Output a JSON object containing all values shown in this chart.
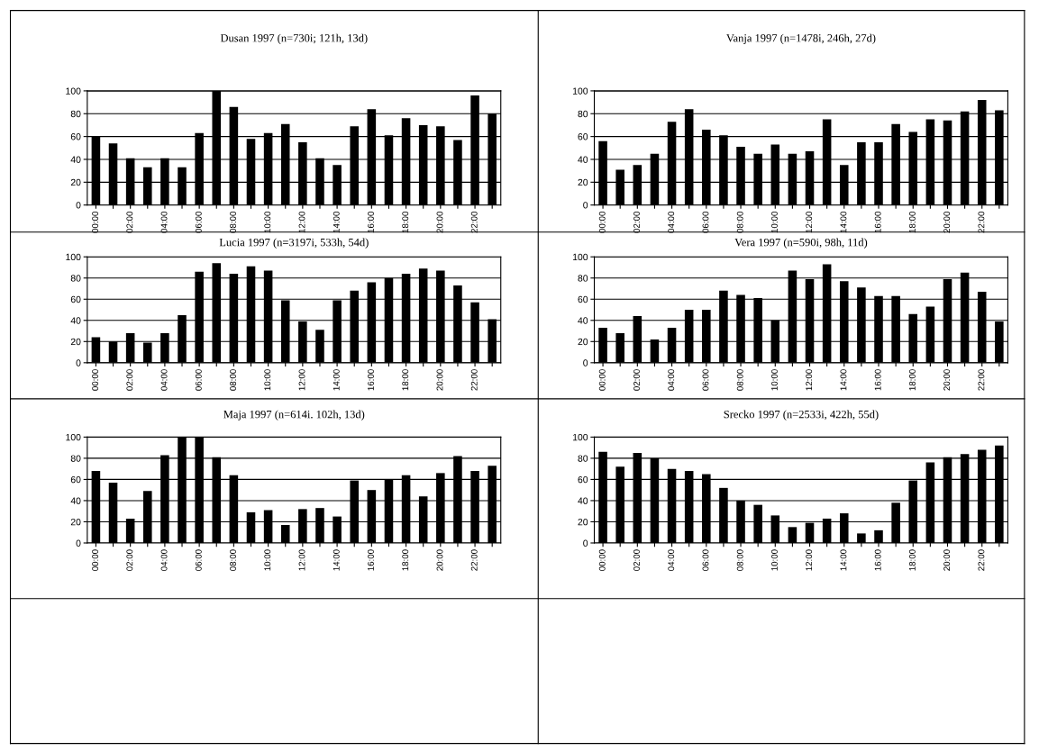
{
  "chart_data": [
    {
      "type": "bar",
      "title": "Dusan 1997 (n=730i; 121h, 13d)",
      "categories": [
        "00:00",
        null,
        "02:00",
        null,
        "04:00",
        null,
        "06:00",
        null,
        "08:00",
        null,
        "10:00",
        null,
        "12:00",
        null,
        "14:00",
        null,
        "16:00",
        null,
        "18:00",
        null,
        "20:00",
        null,
        "22:00",
        null
      ],
      "values": [
        60,
        54,
        41,
        33,
        41,
        33,
        63,
        100,
        86,
        58,
        63,
        71,
        55,
        41,
        35,
        69,
        84,
        61,
        76,
        70,
        69,
        57,
        96,
        80
      ],
      "color": "#000000",
      "ylim": [
        0,
        100
      ],
      "yticks": [
        0,
        20,
        40,
        60,
        80,
        100
      ],
      "grid": "y"
    },
    {
      "type": "bar",
      "title": "Vanja 1997 (n=1478i, 246h, 27d)",
      "categories": [
        "00:00",
        null,
        "02:00",
        null,
        "04:00",
        null,
        "06:00",
        null,
        "08:00",
        null,
        "10:00",
        null,
        "12:00",
        null,
        "14:00",
        null,
        "16:00",
        null,
        "18:00",
        null,
        "20:00",
        null,
        "22:00",
        null
      ],
      "values": [
        56,
        31,
        35,
        45,
        73,
        84,
        66,
        61,
        51,
        45,
        53,
        45,
        47,
        75,
        35,
        55,
        55,
        71,
        64,
        75,
        74,
        82,
        92,
        83
      ],
      "color": "#000000",
      "ylim": [
        0,
        100
      ],
      "yticks": [
        0,
        20,
        40,
        60,
        80,
        100
      ],
      "grid": "y"
    },
    {
      "type": "bar",
      "title": "Lucia 1997 (n=3197i, 533h, 54d)",
      "categories": [
        "00:00",
        null,
        "02:00",
        null,
        "04:00",
        null,
        "06:00",
        null,
        "08:00",
        null,
        "10:00",
        null,
        "12:00",
        null,
        "14:00",
        null,
        "16:00",
        null,
        "18:00",
        null,
        "20:00",
        null,
        "22:00",
        null
      ],
      "values": [
        24,
        20,
        28,
        19,
        28,
        45,
        86,
        94,
        84,
        91,
        87,
        59,
        39,
        31,
        59,
        68,
        76,
        80,
        84,
        89,
        87,
        73,
        57,
        41
      ],
      "color": "#000000",
      "ylim": [
        0,
        100
      ],
      "yticks": [
        0,
        20,
        40,
        60,
        80,
        100
      ],
      "grid": "y"
    },
    {
      "type": "bar",
      "title": "Vera 1997 (n=590i, 98h, 11d)",
      "categories": [
        "00:00",
        null,
        "02:00",
        null,
        "04:00",
        null,
        "06:00",
        null,
        "08:00",
        null,
        "10:00",
        null,
        "12:00",
        null,
        "14:00",
        null,
        "16:00",
        null,
        "18:00",
        null,
        "20:00",
        null,
        "22:00",
        null
      ],
      "values": [
        33,
        28,
        44,
        22,
        33,
        50,
        50,
        68,
        64,
        61,
        40,
        87,
        79,
        93,
        77,
        71,
        63,
        63,
        46,
        53,
        79,
        85,
        67,
        39
      ],
      "color": "#000000",
      "ylim": [
        0,
        100
      ],
      "yticks": [
        0,
        20,
        40,
        60,
        80,
        100
      ],
      "grid": "y"
    },
    {
      "type": "bar",
      "title": "Maja 1997 (n=614i. 102h, 13d)",
      "categories": [
        "00:00",
        null,
        "02:00",
        null,
        "04:00",
        null,
        "06:00",
        null,
        "08:00",
        null,
        "10:00",
        null,
        "12:00",
        null,
        "14:00",
        null,
        "16:00",
        null,
        "18:00",
        null,
        "20:00",
        null,
        "22:00",
        null
      ],
      "values": [
        68,
        57,
        23,
        49,
        83,
        100,
        100,
        81,
        64,
        29,
        31,
        17,
        32,
        33,
        25,
        59,
        50,
        60,
        64,
        44,
        66,
        82,
        68,
        73
      ],
      "color": "#000000",
      "ylim": [
        0,
        100
      ],
      "yticks": [
        0,
        20,
        40,
        60,
        80,
        100
      ],
      "grid": "y"
    },
    {
      "type": "bar",
      "title": "Srecko 1997 (n=2533i, 422h, 55d)",
      "categories": [
        "00:00",
        null,
        "02:00",
        null,
        "04:00",
        null,
        "06:00",
        null,
        "08:00",
        null,
        "10:00",
        null,
        "12:00",
        null,
        "14:00",
        null,
        "16:00",
        null,
        "18:00",
        null,
        "20:00",
        null,
        "22:00",
        null
      ],
      "values": [
        86,
        72,
        85,
        80,
        70,
        68,
        65,
        52,
        40,
        36,
        26,
        15,
        19,
        23,
        28,
        9,
        12,
        38,
        59,
        76,
        81,
        84,
        88,
        92
      ],
      "color": "#000000",
      "ylim": [
        0,
        100
      ],
      "yticks": [
        0,
        20,
        40,
        60,
        80,
        100
      ],
      "grid": "y"
    }
  ]
}
